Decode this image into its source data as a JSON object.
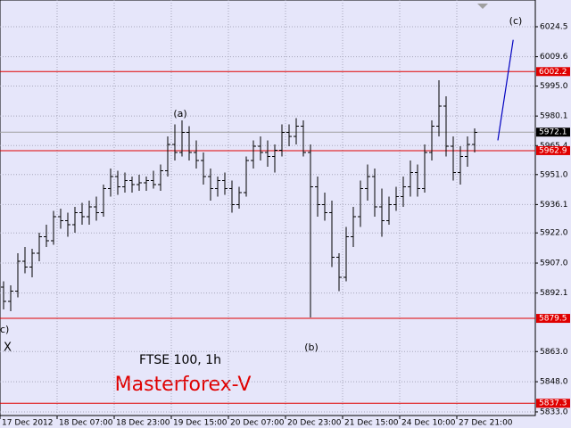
{
  "chart_data": {
    "type": "ohlc",
    "title": "FTSE 100, 1h",
    "subtitle": "Masterforex-V",
    "categories": [
      "17 Dec 2012",
      null,
      null,
      null,
      null,
      null,
      null,
      null,
      "18 Dec 07:00",
      null,
      null,
      null,
      null,
      null,
      null,
      null,
      "18 Dec 23:00",
      null,
      null,
      null,
      null,
      null,
      null,
      null,
      "19 Dec 15:00",
      null,
      null,
      null,
      null,
      null,
      null,
      null,
      "20 Dec 07:00",
      null,
      null,
      null,
      null,
      null,
      null,
      null,
      "20 Dec 23:00",
      null,
      null,
      null,
      null,
      null,
      null,
      null,
      "21 Dec 15:00",
      null,
      null,
      null,
      null,
      null,
      null,
      null,
      "24 Dec 10:00",
      null,
      null,
      null,
      null,
      null,
      null,
      null,
      "27 Dec 21:00",
      null,
      null
    ],
    "open": [
      5895,
      5888,
      5893,
      5908,
      5905,
      5912,
      5920,
      5918,
      5930,
      5928,
      5926,
      5932,
      5930,
      5935,
      5932,
      5944,
      5950,
      5945,
      5948,
      5946,
      5947,
      5948,
      5946,
      5953,
      5966,
      5962,
      5972,
      5962,
      5958,
      5950,
      5944,
      5948,
      5944,
      5936,
      5942,
      5958,
      5965,
      5962,
      5960,
      5963,
      5972,
      5970,
      5975,
      5962,
      5945,
      5936,
      5932,
      5910,
      5900,
      5920,
      5930,
      5944,
      5950,
      5935,
      5928,
      5936,
      5940,
      5945,
      5952,
      5944,
      5962,
      5975,
      5985,
      5965,
      5952,
      5960,
      5966
    ],
    "high": [
      5898,
      5896,
      5912,
      5915,
      5914,
      5922,
      5926,
      5933,
      5934,
      5932,
      5935,
      5937,
      5938,
      5940,
      5946,
      5954,
      5953,
      5952,
      5950,
      5951,
      5950,
      5953,
      5956,
      5970,
      5976,
      5978,
      5975,
      5968,
      5962,
      5954,
      5950,
      5952,
      5948,
      5945,
      5960,
      5968,
      5970,
      5968,
      5966,
      5976,
      5976,
      5979,
      5978,
      5966,
      5950,
      5942,
      5938,
      5912,
      5925,
      5935,
      5948,
      5956,
      5954,
      5944,
      5940,
      5945,
      5950,
      5958,
      5956,
      5966,
      5978,
      5998,
      5990,
      5970,
      5965,
      5970,
      5974
    ],
    "low": [
      5884,
      5883,
      5890,
      5902,
      5900,
      5908,
      5915,
      5916,
      5924,
      5920,
      5922,
      5926,
      5926,
      5928,
      5930,
      5940,
      5941,
      5942,
      5942,
      5943,
      5943,
      5944,
      5943,
      5950,
      5958,
      5960,
      5958,
      5954,
      5946,
      5938,
      5940,
      5941,
      5932,
      5934,
      5940,
      5954,
      5958,
      5955,
      5952,
      5960,
      5965,
      5966,
      5960,
      5880,
      5930,
      5928,
      5905,
      5893,
      5898,
      5915,
      5925,
      5938,
      5930,
      5920,
      5926,
      5933,
      5935,
      5940,
      5940,
      5942,
      5958,
      5970,
      5960,
      5948,
      5946,
      5955,
      5962
    ],
    "close": [
      5888,
      5893,
      5908,
      5905,
      5912,
      5920,
      5918,
      5930,
      5928,
      5926,
      5932,
      5930,
      5935,
      5932,
      5944,
      5950,
      5945,
      5948,
      5946,
      5947,
      5948,
      5946,
      5953,
      5966,
      5962,
      5972,
      5962,
      5958,
      5950,
      5944,
      5948,
      5944,
      5936,
      5942,
      5958,
      5965,
      5962,
      5960,
      5963,
      5972,
      5970,
      5975,
      5962,
      5945,
      5936,
      5932,
      5910,
      5900,
      5920,
      5930,
      5944,
      5950,
      5935,
      5928,
      5936,
      5940,
      5945,
      5952,
      5944,
      5962,
      5975,
      5985,
      5965,
      5952,
      5960,
      5966,
      5972
    ],
    "color": "#000000",
    "ylim": [
      5831.2,
      6037.8
    ],
    "yticks": [
      6024.5,
      6009.6,
      {
        "value": 5995,
        "label": "5995.0"
      },
      5980.1,
      5965.4,
      {
        "value": 5951,
        "label": "5951.0"
      },
      5936.1,
      {
        "value": 5922,
        "label": "5922.0"
      },
      {
        "value": 5907,
        "label": "5907.0"
      },
      5892.1,
      {
        "value": 5863,
        "label": "5863.0"
      },
      {
        "value": 5848,
        "label": "5848.0"
      },
      {
        "value": 5833,
        "label": "5833.0"
      }
    ],
    "grid": true,
    "levels": {
      "color": "#e00000",
      "values": [
        6002.2,
        5962.9,
        5879.5,
        5837.3
      ]
    },
    "current_price": {
      "value": 5972.1,
      "color": "#a0a0a0"
    },
    "projection": {
      "color": "#0000c0",
      "x": [
        69.25,
        71.4
      ],
      "values": [
        5968,
        6018
      ]
    },
    "annotations": [
      "(a)",
      "(b)",
      "(c)",
      "c)",
      "X"
    ]
  }
}
